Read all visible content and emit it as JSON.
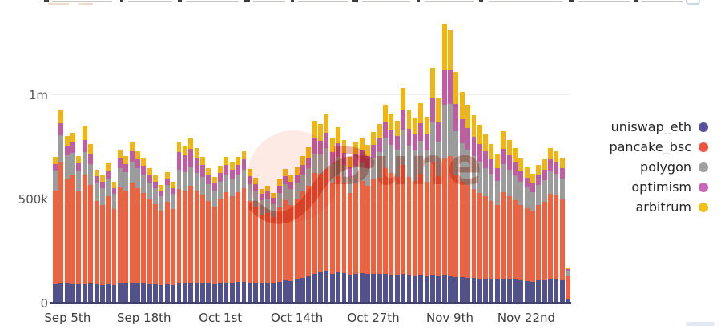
{
  "watermark": {
    "text": "Dune"
  },
  "legend": {
    "items": [
      {
        "label": "uniswap_eth",
        "color": "#55549a"
      },
      {
        "label": "pancake_bsc",
        "color": "#ef5340"
      },
      {
        "label": "polygon",
        "color": "#a0a0a0"
      },
      {
        "label": "optimism",
        "color": "#c868b6"
      },
      {
        "label": "arbitrum",
        "color": "#f2c117"
      }
    ]
  },
  "chart_data": {
    "type": "bar",
    "stacked": true,
    "orientation": "vertical",
    "unit": "thousands",
    "ylim": [
      0,
      1400000
    ],
    "grid": "horizontal-faint",
    "legend_position": "right",
    "y_ticks": [
      {
        "label": "1m",
        "value": 1000
      },
      {
        "label": "500k",
        "value": 500
      },
      {
        "label": "0",
        "value": 0
      }
    ],
    "x_tick_labels": [
      "Sep 5th",
      "Sep 18th",
      "Oct 1st",
      "Oct 14th",
      "Oct 27th",
      "Nov 9th",
      "Nov 22nd"
    ],
    "x_tick_indices": [
      2,
      15,
      28,
      41,
      54,
      67,
      80
    ],
    "num_bars": 88,
    "series": [
      {
        "name": "uniswap_eth",
        "color": "#52518f",
        "values": [
          90,
          95,
          92,
          90,
          88,
          90,
          92,
          88,
          86,
          90,
          85,
          95,
          92,
          95,
          94,
          92,
          90,
          88,
          85,
          90,
          86,
          95,
          94,
          96,
          95,
          94,
          92,
          90,
          95,
          98,
          96,
          100,
          102,
          98,
          95,
          92,
          95,
          92,
          100,
          108,
          105,
          112,
          120,
          128,
          140,
          145,
          150,
          140,
          148,
          142,
          132,
          140,
          142,
          138,
          140,
          138,
          140,
          136,
          132,
          138,
          130,
          128,
          132,
          128,
          132,
          128,
          130,
          128,
          125,
          122,
          120,
          118,
          116,
          114,
          112,
          110,
          115,
          112,
          110,
          108,
          105,
          102,
          106,
          108,
          112,
          110,
          108,
          14
        ]
      },
      {
        "name": "pancake_bsc",
        "color": "#f2603d",
        "values": [
          450,
          580,
          505,
          525,
          447,
          525,
          472,
          400,
          384,
          420,
          364,
          458,
          445,
          484,
          457,
          435,
          406,
          384,
          356,
          396,
          364,
          452,
          445,
          464,
          442,
          426,
          396,
          372,
          406,
          431,
          415,
          431,
          448,
          390,
          365,
          332,
          337,
          318,
          357,
          384,
          366,
          386,
          415,
          432,
          482,
          473,
          494,
          436,
          461,
          434,
          394,
          433,
          442,
          422,
          451,
          464,
          507,
          487,
          472,
          524,
          474,
          458,
          486,
          453,
          541,
          479,
          562,
          577,
          488,
          460,
          445,
          427,
          411,
          396,
          378,
          358,
          415,
          398,
          382,
          361,
          349,
          338,
          362,
          378,
          410,
          404,
          390,
          113
        ]
      },
      {
        "name": "polygon",
        "color": "#9c9c9c",
        "values": [
          95,
          130,
          110,
          105,
          95,
          110,
          100,
          85,
          80,
          88,
          75,
          95,
          90,
          100,
          95,
          90,
          82,
          78,
          70,
          80,
          72,
          90,
          88,
          92,
          88,
          85,
          80,
          75,
          80,
          85,
          82,
          85,
          88,
          80,
          75,
          68,
          70,
          65,
          72,
          78,
          74,
          78,
          82,
          86,
          95,
          92,
          98,
          88,
          92,
          86,
          80,
          86,
          90,
          88,
          105,
          120,
          145,
          135,
          130,
          170,
          150,
          145,
          160,
          148,
          195,
          165,
          260,
          250,
          210,
          185,
          170,
          158,
          148,
          138,
          128,
          118,
          135,
          128,
          120,
          110,
          100,
          92,
          98,
          102,
          110,
          106,
          100,
          28
        ]
      },
      {
        "name": "optimism",
        "color": "#c35ba4",
        "values": [
          30,
          55,
          45,
          50,
          40,
          55,
          48,
          35,
          30,
          35,
          28,
          45,
          40,
          48,
          42,
          40,
          35,
          32,
          28,
          32,
          30,
          85,
          80,
          88,
          72,
          55,
          45,
          38,
          42,
          48,
          44,
          46,
          50,
          40,
          35,
          30,
          32,
          28,
          33,
          38,
          35,
          40,
          46,
          52,
          70,
          68,
          75,
          60,
          66,
          58,
          48,
          55,
          58,
          55,
          62,
          68,
          78,
          72,
          68,
          95,
          80,
          75,
          85,
          78,
          115,
          95,
          168,
          160,
          130,
          115,
          102,
          95,
          85,
          78,
          70,
          62,
          72,
          68,
          62,
          55,
          48,
          44,
          48,
          50,
          55,
          54,
          50,
          5
        ]
      },
      {
        "name": "arbitrum",
        "color": "#f2b50d",
        "values": [
          35,
          68,
          48,
          45,
          35,
          70,
          50,
          32,
          30,
          35,
          28,
          42,
          38,
          45,
          40,
          35,
          32,
          30,
          26,
          30,
          28,
          48,
          45,
          50,
          45,
          40,
          35,
          30,
          35,
          38,
          35,
          38,
          40,
          34,
          30,
          26,
          28,
          25,
          30,
          34,
          32,
          36,
          42,
          50,
          85,
          80,
          88,
          68,
          75,
          62,
          48,
          58,
          60,
          55,
          62,
          68,
          80,
          75,
          70,
          105,
          88,
          82,
          95,
          85,
          145,
          115,
          218,
          195,
          155,
          130,
          115,
          102,
          92,
          82,
          74,
          64,
          85,
          76,
          68,
          58,
          50,
          44,
          48,
          50,
          55,
          54,
          50,
          5
        ]
      }
    ]
  }
}
